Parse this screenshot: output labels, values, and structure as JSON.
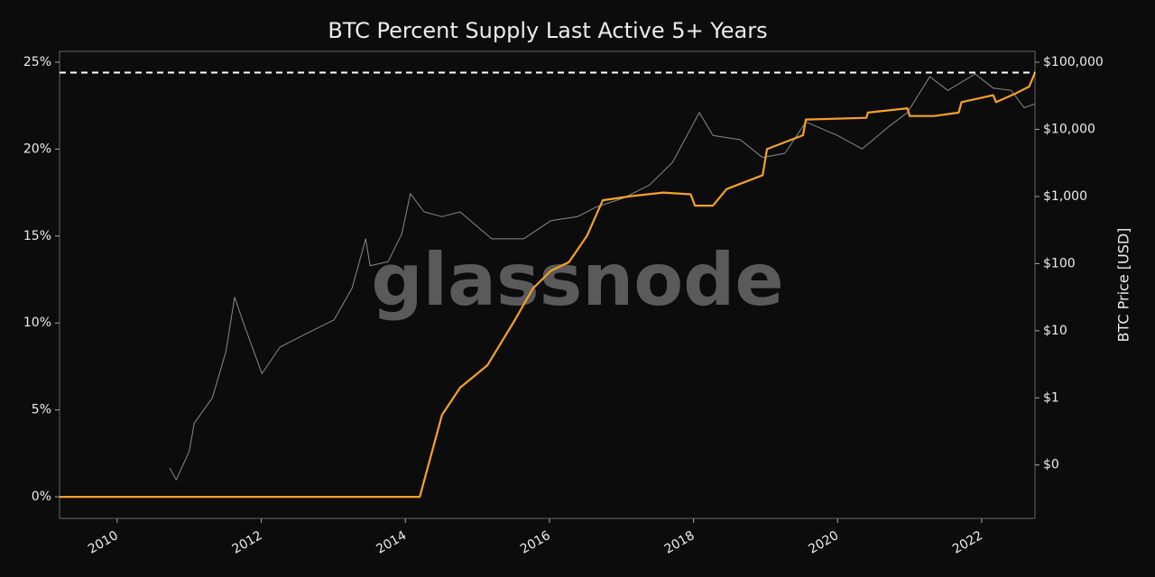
{
  "chart_data": {
    "type": "line",
    "title": "BTC Percent Supply Last Active 5+ Years",
    "y2_label": "BTC Price [USD]",
    "watermark": "glassnode",
    "xlim": [
      2009.2,
      2022.74
    ],
    "xticks": [
      2010,
      2012,
      2014,
      2016,
      2018,
      2020,
      2022
    ],
    "ylim": [
      -1.24,
      25.62
    ],
    "yticks": [
      {
        "value": 0,
        "label": "0%"
      },
      {
        "value": 5,
        "label": "5%"
      },
      {
        "value": 10,
        "label": "10%"
      },
      {
        "value": 15,
        "label": "15%"
      },
      {
        "value": 20,
        "label": "20%"
      },
      {
        "value": 25,
        "label": "25%"
      }
    ],
    "y2lim": [
      0.016,
      145000
    ],
    "y2_log_scale": true,
    "y2ticks": [
      {
        "value": 0.1,
        "label": "$0"
      },
      {
        "value": 1,
        "label": "$1"
      },
      {
        "value": 10,
        "label": "$10"
      },
      {
        "value": 100,
        "label": "$100"
      },
      {
        "value": 1000,
        "label": "$1,000"
      },
      {
        "value": 10000,
        "label": "$10,000"
      },
      {
        "value": 100000,
        "label": "$100,000"
      }
    ],
    "grid": false,
    "hline": {
      "value": 24.4,
      "color": "#ffffff"
    },
    "series": [
      {
        "color": "#8a8a8a",
        "axis": "y2",
        "x": [
          2010.73,
          2010.82,
          2011.0,
          2011.07,
          2011.32,
          2011.51,
          2011.63,
          2011.76,
          2012.01,
          2012.26,
          2012.63,
          2013.01,
          2013.26,
          2013.45,
          2013.51,
          2013.76,
          2013.95,
          2014.07,
          2014.26,
          2014.51,
          2014.76,
          2015.2,
          2015.64,
          2016.02,
          2016.39,
          2016.64,
          2017.02,
          2017.39,
          2017.71,
          2018.08,
          2018.27,
          2018.65,
          2018.96,
          2019.27,
          2019.56,
          2020.0,
          2020.34,
          2020.72,
          2020.97,
          2021.28,
          2021.53,
          2021.91,
          2022.16,
          2022.41,
          2022.59,
          2022.74
        ],
        "values": [
          0.09,
          0.06,
          0.16,
          0.42,
          1.0,
          4.9,
          31.6,
          12.4,
          2.3,
          5.7,
          9.1,
          14.5,
          43,
          234,
          93,
          107,
          275,
          1100,
          590,
          500,
          590,
          234,
          234,
          436,
          500,
          690,
          940,
          1480,
          3240,
          17800,
          8100,
          7000,
          3800,
          4400,
          12900,
          8100,
          5100,
          11200,
          17800,
          61000,
          38000,
          67000,
          41000,
          38000,
          21000,
          24000
        ]
      },
      {
        "color": "#f7a127",
        "axis": "y",
        "x": [
          2009.2,
          2014.2,
          2014.51,
          2014.76,
          2015.14,
          2015.52,
          2015.77,
          2016.02,
          2016.27,
          2016.52,
          2016.74,
          2017.14,
          2017.58,
          2017.96,
          2018.02,
          2018.27,
          2018.46,
          2018.96,
          2019.02,
          2019.52,
          2019.56,
          2020.4,
          2020.42,
          2020.97,
          2021.0,
          2021.34,
          2021.68,
          2021.72,
          2022.16,
          2022.2,
          2022.47,
          2022.66,
          2022.74
        ],
        "values": [
          0,
          0,
          4.72,
          6.28,
          7.57,
          10.17,
          11.98,
          13.0,
          13.5,
          15.0,
          17.06,
          17.3,
          17.5,
          17.4,
          16.75,
          16.75,
          17.7,
          18.5,
          20.0,
          20.8,
          21.7,
          21.8,
          22.1,
          22.35,
          21.9,
          21.9,
          22.1,
          22.7,
          23.1,
          22.7,
          23.2,
          23.6,
          24.4
        ]
      }
    ]
  }
}
